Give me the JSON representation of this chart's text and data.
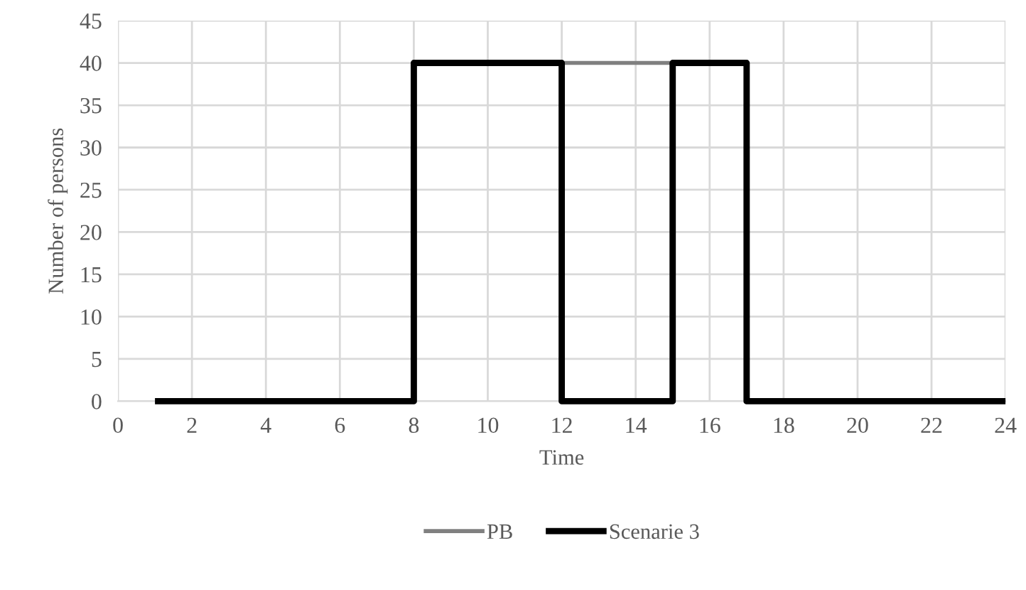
{
  "chart_data": {
    "type": "line",
    "xlabel": "Time",
    "ylabel": "Number of persons",
    "xlim": [
      0,
      24
    ],
    "xticks": [
      0,
      2,
      4,
      6,
      8,
      10,
      12,
      14,
      16,
      18,
      20,
      22,
      24
    ],
    "ylim": [
      0,
      45
    ],
    "yticks": [
      0,
      5,
      10,
      15,
      20,
      25,
      30,
      35,
      40,
      45
    ],
    "grid": true,
    "legend": "bottom",
    "marker": "none",
    "line_style": "solid",
    "series": [
      {
        "name": "PB",
        "color": "#808080",
        "x": [
          12,
          15
        ],
        "values": [
          40,
          40
        ]
      },
      {
        "name": "Scenarie 3",
        "color": "#000000",
        "x": [
          1,
          8,
          8,
          12,
          12,
          15,
          15,
          17,
          17,
          24
        ],
        "values": [
          0,
          0,
          40,
          40,
          0,
          0,
          40,
          40,
          0,
          0
        ]
      }
    ]
  }
}
